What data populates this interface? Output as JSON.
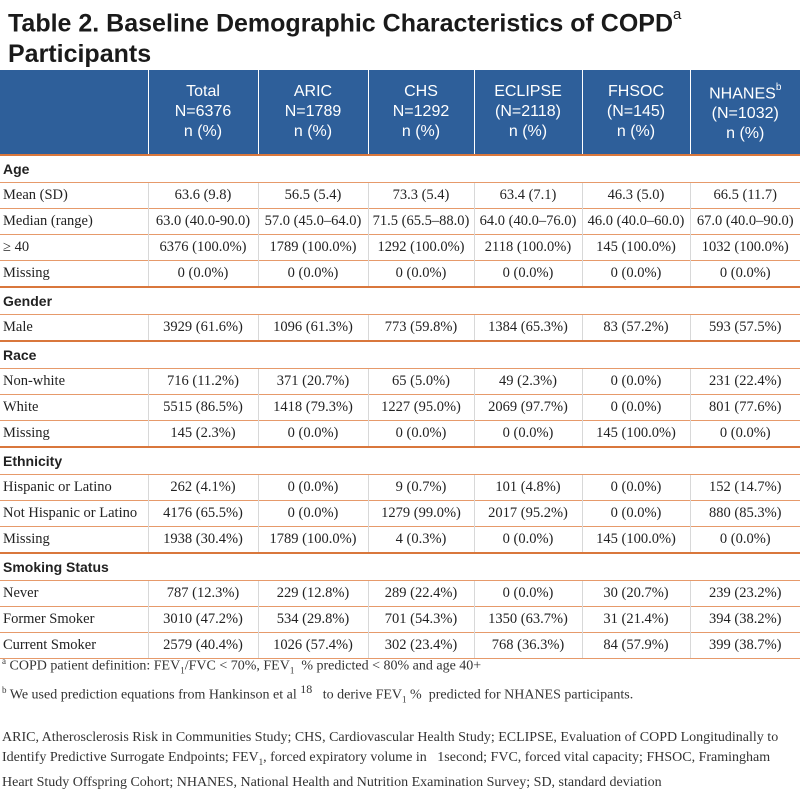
{
  "title": "Table 2. Baseline Demographic Characteristics of COPD",
  "title_sup": "a",
  "title_line2": "Participants",
  "header": {
    "bg_color": "#2e5f9a",
    "columns": [
      {
        "l1": "Total",
        "l2": "N=6376",
        "l3": "n (%)",
        "sup": ""
      },
      {
        "l1": "ARIC",
        "l2": "N=1789",
        "l3": "n (%)",
        "sup": ""
      },
      {
        "l1": "CHS",
        "l2": "N=1292",
        "l3": "n (%)",
        "sup": ""
      },
      {
        "l1": "ECLIPSE",
        "l2": "(N=2118)",
        "l3": "n (%)",
        "sup": ""
      },
      {
        "l1": "FHSOC",
        "l2": "(N=145)",
        "l3": "n (%)",
        "sup": ""
      },
      {
        "l1": "NHANES",
        "l2": "(N=1032)",
        "l3": "n (%)",
        "sup": "b"
      }
    ]
  },
  "rule_color": "#d9773c",
  "sections": [
    {
      "name": "Age",
      "rows": [
        {
          "label": "Mean (SD)",
          "cells": [
            "63.6 (9.8)",
            "56.5 (5.4)",
            "73.3 (5.4)",
            "63.4 (7.1)",
            "46.3 (5.0)",
            "66.5 (11.7)"
          ]
        },
        {
          "label": "Median (range)",
          "cells": [
            "63.0 (40.0-90.0)",
            "57.0 (45.0–64.0)",
            "71.5 (65.5–88.0)",
            "64.0 (40.0–76.0)",
            "46.0 (40.0–60.0)",
            "67.0 (40.0–90.0)"
          ]
        },
        {
          "label": "≥ 40",
          "cells": [
            "6376 (100.0%)",
            "1789 (100.0%)",
            "1292 (100.0%)",
            "2118 (100.0%)",
            "145 (100.0%)",
            "1032 (100.0%)"
          ]
        },
        {
          "label": "Missing",
          "cells": [
            "0 (0.0%)",
            "0 (0.0%)",
            "0 (0.0%)",
            "0 (0.0%)",
            "0 (0.0%)",
            "0 (0.0%)"
          ]
        }
      ]
    },
    {
      "name": "Gender",
      "rows": [
        {
          "label": "Male",
          "cells": [
            "3929 (61.6%)",
            "1096 (61.3%)",
            "773 (59.8%)",
            "1384 (65.3%)",
            "83 (57.2%)",
            "593 (57.5%)"
          ]
        }
      ]
    },
    {
      "name": "Race",
      "rows": [
        {
          "label": "Non-white",
          "cells": [
            "716 (11.2%)",
            "371 (20.7%)",
            "65 (5.0%)",
            "49 (2.3%)",
            "0 (0.0%)",
            "231 (22.4%)"
          ]
        },
        {
          "label": "White",
          "cells": [
            "5515 (86.5%)",
            "1418 (79.3%)",
            "1227 (95.0%)",
            "2069 (97.7%)",
            "0 (0.0%)",
            "801 (77.6%)"
          ]
        },
        {
          "label": "Missing",
          "cells": [
            "145 (2.3%)",
            "0 (0.0%)",
            "0 (0.0%)",
            "0 (0.0%)",
            "145 (100.0%)",
            "0 (0.0%)"
          ]
        }
      ]
    },
    {
      "name": "Ethnicity",
      "rows": [
        {
          "label": "Hispanic or Latino",
          "cells": [
            "262 (4.1%)",
            "0 (0.0%)",
            "9 (0.7%)",
            "101 (4.8%)",
            "0 (0.0%)",
            "152 (14.7%)"
          ]
        },
        {
          "label": "Not Hispanic or Latino",
          "cells": [
            "4176 (65.5%)",
            "0 (0.0%)",
            "1279 (99.0%)",
            "2017 (95.2%)",
            "0 (0.0%)",
            "880 (85.3%)"
          ]
        },
        {
          "label": "Missing",
          "cells": [
            "1938 (30.4%)",
            "1789 (100.0%)",
            "4 (0.3%)",
            "0 (0.0%)",
            "145 (100.0%)",
            "0 (0.0%)"
          ]
        }
      ]
    },
    {
      "name": "Smoking Status",
      "rows": [
        {
          "label": "Never",
          "cells": [
            "787 (12.3%)",
            "229 (12.8%)",
            "289 (22.4%)",
            "0 (0.0%)",
            "30 (20.7%)",
            "239 (23.2%)"
          ]
        },
        {
          "label": "Former Smoker",
          "cells": [
            "3010 (47.2%)",
            "534 (29.8%)",
            "701 (54.3%)",
            "1350 (63.7%)",
            "31 (21.4%)",
            "394 (38.2%)"
          ]
        },
        {
          "label": "Current Smoker",
          "cells": [
            "2579 (40.4%)",
            "1026 (57.4%)",
            "302 (23.4%)",
            "768 (36.3%)",
            "84 (57.9%)",
            "399 (38.7%)"
          ]
        }
      ]
    }
  ],
  "footnotes": {
    "a": {
      "mark": "a",
      "p1": "COPD patient definition: FEV",
      "s1": "1",
      "p2": "/FVC < 70%, FEV",
      "s2": "1",
      "p3": "  % predicted < 80% and age 40+"
    },
    "b": {
      "mark": "b",
      "p1": "We used prediction equations from Hankinson et al",
      "ref": "18",
      "p2": "   to derive FEV",
      "s1": "1",
      "p3": " %  predicted for NHANES participants."
    }
  },
  "abbreviations": {
    "p1": "ARIC, Atherosclerosis Risk in Communities Study; CHS, Cardiovascular Health Study; ECLIPSE, Evaluation of COPD Longitudinally to Identify Predictive Surrogate Endpoints; FEV",
    "s1": "1",
    "p2": ", forced expiratory volume in   1second; FVC, forced vital capacity; FHSOC, Framingham Heart Study Offspring Cohort; NHANES, National Health and Nutrition Examination Survey; SD, standard deviation"
  }
}
